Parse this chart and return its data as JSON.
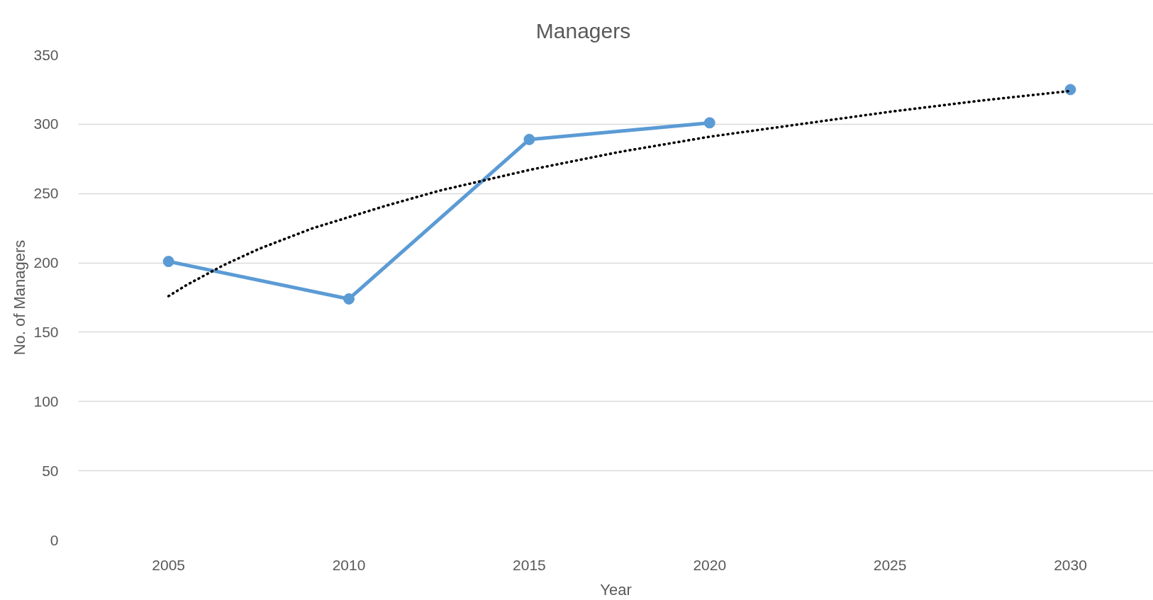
{
  "chart_data": {
    "type": "line",
    "title": "Managers",
    "xlabel": "Year",
    "ylabel": "No. of Managers",
    "x": [
      2005,
      2010,
      2015,
      2020,
      2025,
      2030
    ],
    "series": [
      {
        "color": "#5b9bd5",
        "values": [
          201,
          174,
          289,
          301,
          null,
          325
        ]
      },
      {
        "type": "line",
        "color": "#000000",
        "marker": "none",
        "line_style": "dotted",
        "x": [
          2005,
          2005.5,
          2006,
          2006.5,
          2007,
          2007.5,
          2008,
          2009,
          2010,
          2011,
          2012.5,
          2015,
          2017.5,
          2020,
          2022.5,
          2025,
          2027.5,
          2030
        ],
        "values": [
          176,
          184,
          191,
          198,
          204,
          210,
          215,
          225,
          233,
          241,
          252,
          267,
          280,
          291,
          300,
          309,
          317,
          324
        ]
      }
    ],
    "xlim": [
      2002.5,
      2032.3
    ],
    "xticks": [
      2005,
      2010,
      2015,
      2020,
      2025,
      2030
    ],
    "ylim": [
      0,
      350
    ],
    "yticks": [
      0,
      50,
      100,
      150,
      200,
      250,
      300,
      350
    ],
    "grid": "y",
    "marker": "circle",
    "line_style": "solid"
  }
}
